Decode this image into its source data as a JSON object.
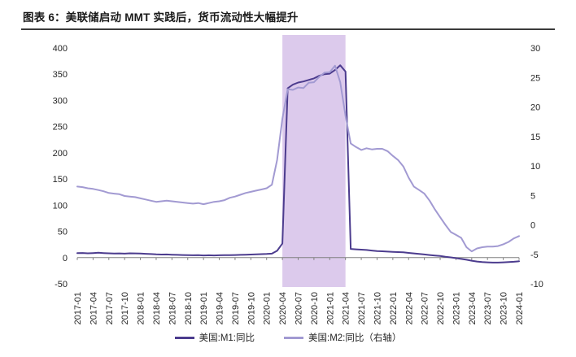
{
  "title": "图表 6：美联储启动 MMT 实践后，货币流动性大幅提升",
  "chart_data": {
    "type": "line",
    "x": [
      "2017-01",
      "2017-02",
      "2017-03",
      "2017-04",
      "2017-05",
      "2017-06",
      "2017-07",
      "2017-08",
      "2017-09",
      "2017-10",
      "2017-11",
      "2017-12",
      "2018-01",
      "2018-02",
      "2018-03",
      "2018-04",
      "2018-05",
      "2018-06",
      "2018-07",
      "2018-08",
      "2018-09",
      "2018-10",
      "2018-11",
      "2018-12",
      "2019-01",
      "2019-02",
      "2019-03",
      "2019-04",
      "2019-05",
      "2019-06",
      "2019-07",
      "2019-08",
      "2019-09",
      "2019-10",
      "2019-11",
      "2019-12",
      "2020-01",
      "2020-02",
      "2020-03",
      "2020-04",
      "2020-05",
      "2020-06",
      "2020-07",
      "2020-08",
      "2020-09",
      "2020-10",
      "2020-11",
      "2020-12",
      "2021-01",
      "2021-02",
      "2021-03",
      "2021-04",
      "2021-05",
      "2021-06",
      "2021-07",
      "2021-08",
      "2021-09",
      "2021-10",
      "2021-11",
      "2021-12",
      "2022-01",
      "2022-02",
      "2022-03",
      "2022-04",
      "2022-05",
      "2022-06",
      "2022-07",
      "2022-08",
      "2022-09",
      "2022-10",
      "2022-11",
      "2022-12",
      "2023-01",
      "2023-02",
      "2023-03",
      "2023-04",
      "2023-05",
      "2023-06",
      "2023-07",
      "2023-08",
      "2023-09",
      "2023-10",
      "2023-11",
      "2023-12",
      "2024-01"
    ],
    "x_tick_step": 3,
    "series": [
      {
        "name": "美国:M1:同比",
        "axis": "left",
        "color": "#4c3c8e",
        "values": [
          8.5,
          8.8,
          8.2,
          8.6,
          9.2,
          8.6,
          8.2,
          7.8,
          8.0,
          7.6,
          8.2,
          8.0,
          7.8,
          7.2,
          6.8,
          6.2,
          5.8,
          6.0,
          5.6,
          5.2,
          4.9,
          4.6,
          4.4,
          4.6,
          4.2,
          4.4,
          4.1,
          4.4,
          4.6,
          4.6,
          4.9,
          5.2,
          5.6,
          5.9,
          6.2,
          6.6,
          6.9,
          7.5,
          13.0,
          27.0,
          323.0,
          330.0,
          334.0,
          336.0,
          339.0,
          342.0,
          347.0,
          350.0,
          351.0,
          358.0,
          367.0,
          355.0,
          16.5,
          15.8,
          15.2,
          14.5,
          13.5,
          12.5,
          12.0,
          11.5,
          11.0,
          10.5,
          10.0,
          9.0,
          8.0,
          7.0,
          6.0,
          5.0,
          4.0,
          3.0,
          1.5,
          0.5,
          -1.0,
          -2.5,
          -4.0,
          -6.0,
          -7.5,
          -8.5,
          -9.0,
          -9.5,
          -9.5,
          -9.0,
          -8.5,
          -8.0,
          -7.0
        ]
      },
      {
        "name": "美国:M2:同比（右轴）",
        "axis": "right",
        "color": "#a29ad2",
        "values": [
          6.5,
          6.4,
          6.2,
          6.1,
          5.9,
          5.7,
          5.4,
          5.3,
          5.2,
          4.9,
          4.8,
          4.7,
          4.5,
          4.3,
          4.1,
          3.9,
          4.0,
          4.1,
          4.0,
          3.9,
          3.8,
          3.7,
          3.6,
          3.7,
          3.5,
          3.7,
          3.9,
          4.0,
          4.2,
          4.6,
          4.8,
          5.1,
          5.4,
          5.6,
          5.8,
          6.0,
          6.2,
          6.8,
          11.0,
          18.0,
          23.0,
          22.9,
          23.3,
          23.2,
          24.1,
          24.2,
          25.1,
          25.8,
          25.9,
          27.0,
          24.2,
          18.5,
          13.8,
          13.2,
          12.7,
          13.0,
          12.8,
          12.9,
          12.9,
          12.5,
          11.7,
          11.0,
          9.9,
          8.0,
          6.5,
          5.9,
          5.3,
          4.1,
          2.6,
          1.3,
          0.0,
          -1.2,
          -1.7,
          -2.2,
          -3.8,
          -4.5,
          -4.0,
          -3.8,
          -3.7,
          -3.7,
          -3.6,
          -3.3,
          -2.9,
          -2.3,
          -1.9
        ]
      }
    ],
    "left_axis": {
      "min": -50,
      "max": 400,
      "step": 50
    },
    "right_axis": {
      "min": -10,
      "max": 30,
      "step": 5
    },
    "highlight_band": {
      "from": "2020-04",
      "to": "2021-04",
      "color": "#dccaec"
    },
    "grid": false,
    "legend_position": "bottom"
  }
}
